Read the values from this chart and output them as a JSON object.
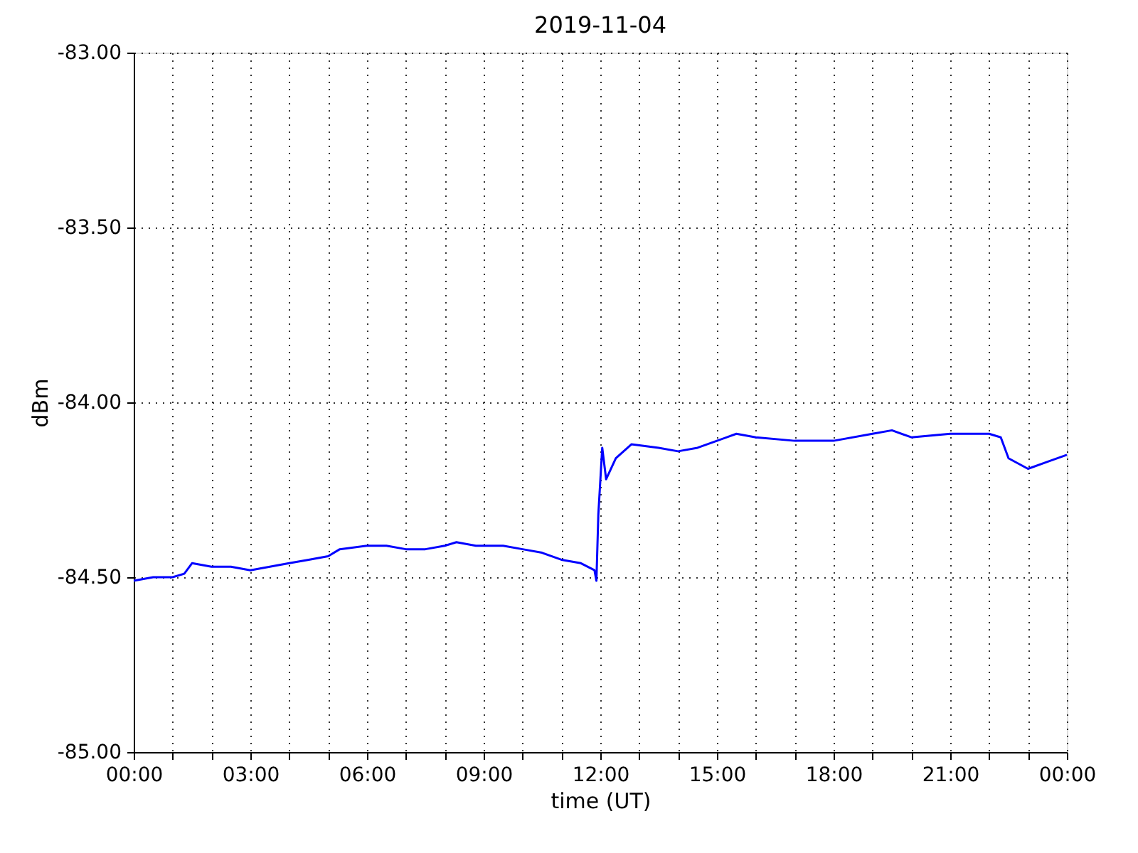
{
  "chart_data": {
    "type": "line",
    "title": "2019-11-04",
    "xlabel": "time (UT)",
    "ylabel": "dBm",
    "x": [
      0,
      0.5,
      1,
      1.3,
      1.5,
      2,
      2.5,
      3,
      3.5,
      4,
      4.5,
      5,
      5.3,
      6,
      6.5,
      7,
      7.5,
      8,
      8.3,
      8.8,
      9.5,
      10,
      10.5,
      11,
      11.5,
      11.85,
      11.9,
      11.95,
      12.05,
      12.15,
      12.4,
      12.8,
      13.5,
      14,
      14.5,
      15,
      15.5,
      16,
      17,
      18,
      19,
      19.5,
      20,
      21,
      22,
      22.3,
      22.5,
      23,
      23.5,
      24
    ],
    "series": [
      {
        "color": "#0000ff",
        "values": [
          -84.51,
          -84.5,
          -84.5,
          -84.49,
          -84.46,
          -84.47,
          -84.47,
          -84.48,
          -84.47,
          -84.46,
          -84.45,
          -84.44,
          -84.42,
          -84.41,
          -84.41,
          -84.42,
          -84.42,
          -84.41,
          -84.4,
          -84.41,
          -84.41,
          -84.42,
          -84.43,
          -84.45,
          -84.46,
          -84.48,
          -84.51,
          -84.32,
          -84.13,
          -84.22,
          -84.16,
          -84.12,
          -84.13,
          -84.14,
          -84.13,
          -84.11,
          -84.09,
          -84.1,
          -84.11,
          -84.11,
          -84.09,
          -84.08,
          -84.1,
          -84.09,
          -84.09,
          -84.1,
          -84.16,
          -84.19,
          -84.17,
          -84.15
        ]
      }
    ],
    "xlim": [
      0,
      24
    ],
    "xticks": [
      {
        "value": 0,
        "label": "00:00"
      },
      {
        "value": 1,
        "label": null
      },
      {
        "value": 2,
        "label": null
      },
      {
        "value": 3,
        "label": "03:00"
      },
      {
        "value": 4,
        "label": null
      },
      {
        "value": 5,
        "label": null
      },
      {
        "value": 6,
        "label": "06:00"
      },
      {
        "value": 7,
        "label": null
      },
      {
        "value": 8,
        "label": null
      },
      {
        "value": 9,
        "label": "09:00"
      },
      {
        "value": 10,
        "label": null
      },
      {
        "value": 11,
        "label": null
      },
      {
        "value": 12,
        "label": "12:00"
      },
      {
        "value": 13,
        "label": null
      },
      {
        "value": 14,
        "label": null
      },
      {
        "value": 15,
        "label": "15:00"
      },
      {
        "value": 16,
        "label": null
      },
      {
        "value": 17,
        "label": null
      },
      {
        "value": 18,
        "label": "18:00"
      },
      {
        "value": 19,
        "label": null
      },
      {
        "value": 20,
        "label": null
      },
      {
        "value": 21,
        "label": "21:00"
      },
      {
        "value": 22,
        "label": null
      },
      {
        "value": 23,
        "label": null
      },
      {
        "value": 24,
        "label": "00:00"
      }
    ],
    "ylim": [
      -85,
      -83
    ],
    "yticks": [
      {
        "value": -85,
        "label": "-85.00"
      },
      {
        "value": -84.5,
        "label": "-84.50"
      },
      {
        "value": -84,
        "label": "-84.00"
      },
      {
        "value": -83.5,
        "label": "-83.50"
      },
      {
        "value": -83,
        "label": "-83.00"
      }
    ],
    "grid": true,
    "line_style": "solid"
  }
}
